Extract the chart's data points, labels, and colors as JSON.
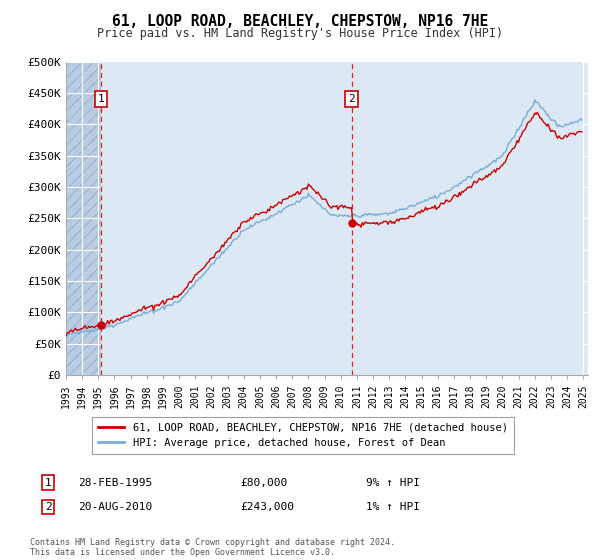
{
  "title": "61, LOOP ROAD, BEACHLEY, CHEPSTOW, NP16 7HE",
  "subtitle": "Price paid vs. HM Land Registry's House Price Index (HPI)",
  "background_color": "#ffffff",
  "plot_bg_color": "#dce9f5",
  "hatch_color": "#b8cce4",
  "grid_color": "#ffffff",
  "line1_color": "#cc0000",
  "line2_color": "#7aadd4",
  "sale1_price": 80000,
  "sale2_price": 243000,
  "sale1_month_idx": 26,
  "sale2_month_idx": 212,
  "ylim": [
    0,
    500000
  ],
  "yticks": [
    0,
    50000,
    100000,
    150000,
    200000,
    250000,
    300000,
    350000,
    400000,
    450000,
    500000
  ],
  "ytick_labels": [
    "£0",
    "£50K",
    "£100K",
    "£150K",
    "£200K",
    "£250K",
    "£300K",
    "£350K",
    "£400K",
    "£450K",
    "£500K"
  ],
  "legend_label1": "61, LOOP ROAD, BEACHLEY, CHEPSTOW, NP16 7HE (detached house)",
  "legend_label2": "HPI: Average price, detached house, Forest of Dean",
  "footer": "Contains HM Land Registry data © Crown copyright and database right 2024.\nThis data is licensed under the Open Government Licence v3.0.",
  "xstart_year": 1993,
  "xend_year": 2025,
  "ann1_date": "28-FEB-1995",
  "ann1_price": "£80,000",
  "ann1_pct": "9% ↑ HPI",
  "ann2_date": "20-AUG-2010",
  "ann2_price": "£243,000",
  "ann2_pct": "1% ↑ HPI"
}
